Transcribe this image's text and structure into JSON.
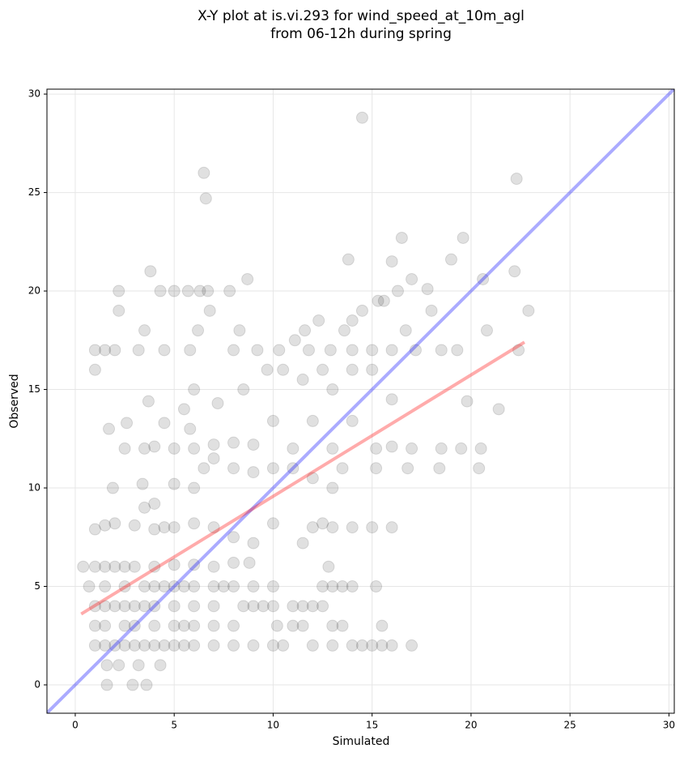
{
  "chart_data": {
    "type": "scatter",
    "title": [
      "X-Y plot at is.vi.293 for wind_speed_at_10m_agl",
      "from 06-12h during spring"
    ],
    "xlabel": "Simulated",
    "ylabel": "Observed",
    "xlim": [
      -1.43,
      30.27
    ],
    "ylim": [
      -1.44,
      30.25
    ],
    "xticks": [
      0,
      5,
      10,
      15,
      20,
      25,
      30
    ],
    "yticks": [
      0,
      5,
      10,
      15,
      20,
      25,
      30
    ],
    "grid": true,
    "color": "#000000",
    "alpha": 0.12,
    "x": [
      1,
      1.5,
      2,
      2.5,
      3,
      3.5,
      4,
      4.5,
      5,
      5.5,
      6,
      7,
      8,
      9,
      10,
      10.5,
      12,
      13,
      14,
      14.5,
      15,
      15.5,
      16,
      17,
      1,
      1.5,
      2.5,
      3,
      4,
      5,
      5.5,
      6,
      7,
      8,
      10.2,
      11,
      11.5,
      13,
      13.5,
      15.5,
      1,
      1.5,
      2,
      2.5,
      3,
      3.5,
      4,
      5,
      6,
      7,
      8.5,
      9,
      9.5,
      10,
      11,
      11.5,
      12,
      12.5,
      0.7,
      1.5,
      2.5,
      3.5,
      4,
      4.5,
      5,
      5.5,
      6,
      7,
      7.5,
      8,
      9,
      10,
      12.5,
      13,
      13.5,
      14,
      15.2,
      0.4,
      1,
      1.5,
      2,
      2.5,
      3,
      4,
      5,
      6,
      7,
      8,
      8.8,
      12.8,
      1,
      1.5,
      2,
      3,
      4,
      4.5,
      5,
      6,
      7,
      8,
      9,
      10,
      11.5,
      12,
      12.5,
      13,
      14,
      15,
      16,
      3.5,
      4,
      5,
      6,
      6.5,
      7,
      8,
      9,
      10,
      11,
      12,
      13,
      13.5,
      15.2,
      16.8,
      18.4,
      20.4,
      1.9,
      3.4,
      2.5,
      3.5,
      4,
      5,
      6,
      7,
      8,
      9,
      10,
      11,
      12,
      13,
      14,
      15.2,
      16,
      17,
      18.5,
      19.5,
      20.5,
      1.7,
      2.6,
      4.5,
      5.8,
      3.7,
      5.5,
      7.2,
      8.5,
      9.7,
      10.5,
      11.5,
      12.5,
      13,
      14,
      15,
      16,
      19.8,
      21.4,
      6,
      1,
      1.5,
      2,
      3.2,
      4.5,
      5.8,
      8,
      9.2,
      10.3,
      11.8,
      12.9,
      14,
      15,
      16,
      17.2,
      18.5,
      19.3,
      22.4,
      1,
      3.5,
      6.2,
      8.3,
      11.6,
      13.6,
      11.1,
      12.3,
      14,
      15.6,
      16.7,
      18,
      20.8,
      2.2,
      4.3,
      5,
      5.7,
      6.3,
      6.7,
      7.8,
      3.8,
      8.7,
      13.8,
      16,
      16.3,
      17,
      17.8,
      19,
      20.6,
      2.2,
      6.8,
      14.5,
      15.3,
      6.5,
      6.6,
      14.5,
      22.3,
      16.5,
      19.6,
      22.2,
      22.9,
      1.6,
      2.9,
      3.6,
      1.6,
      2.2,
      3.2,
      4.3
    ],
    "y": [
      2,
      2,
      2,
      2,
      2,
      2,
      2,
      2,
      2,
      2,
      2,
      2,
      2,
      2,
      2,
      2,
      2,
      2,
      2,
      2,
      2,
      2,
      2,
      2,
      3,
      3,
      3,
      3,
      3,
      3,
      3,
      3,
      3,
      3,
      3,
      3,
      3,
      3,
      3,
      3,
      4,
      4,
      4,
      4,
      4,
      4,
      4,
      4,
      4,
      4,
      4,
      4,
      4,
      4,
      4,
      4,
      4,
      4,
      5,
      5,
      5,
      5,
      5,
      5,
      5,
      5,
      5,
      5,
      5,
      5,
      5,
      5,
      5,
      5,
      5,
      5,
      5,
      6,
      6,
      6,
      6,
      6,
      6,
      6,
      6.1,
      6.1,
      6,
      6.2,
      6.2,
      6,
      7.9,
      8.1,
      8.2,
      8.1,
      7.9,
      8,
      8,
      8.2,
      8,
      7.5,
      7.2,
      8.2,
      7.2,
      8,
      8.2,
      8,
      8,
      8,
      8,
      9,
      9.2,
      10.2,
      10,
      11,
      11.5,
      11,
      10.8,
      11,
      11,
      10.5,
      10,
      11,
      11,
      11,
      11,
      11,
      10,
      10.2,
      12,
      12,
      12.1,
      12,
      12,
      12.2,
      12.3,
      12.2,
      13.4,
      12,
      13.4,
      12,
      13.4,
      12,
      12.1,
      12,
      12,
      12,
      12,
      13,
      13.3,
      13.3,
      13,
      14.4,
      14,
      14.3,
      15,
      16,
      16,
      15.5,
      16,
      15,
      16,
      16,
      14.5,
      14.4,
      14,
      15,
      17,
      17,
      17,
      17,
      17,
      17,
      17,
      17,
      17,
      17,
      17,
      17,
      17,
      17,
      17,
      17,
      17,
      17,
      16,
      18,
      18,
      18,
      18,
      18,
      17.5,
      18.5,
      18.5,
      19.5,
      18,
      19,
      18,
      20,
      20,
      20,
      20,
      20,
      20,
      20,
      21,
      20.6,
      21.6,
      21.5,
      20,
      20.6,
      20.1,
      21.6,
      20.6,
      19,
      19,
      19,
      19.5,
      26,
      24.7,
      28.8,
      25.7,
      22.7,
      22.7,
      21,
      19,
      0,
      0,
      0,
      1,
      1,
      1,
      1
    ],
    "lines": [
      {
        "color": "#0000ff",
        "x": [
          -1.43,
          30.27
        ],
        "y": [
          -1.43,
          30.27
        ]
      },
      {
        "color": "#ff0000",
        "x": [
          0.3,
          22.7
        ],
        "y": [
          3.6,
          17.4
        ]
      }
    ]
  }
}
